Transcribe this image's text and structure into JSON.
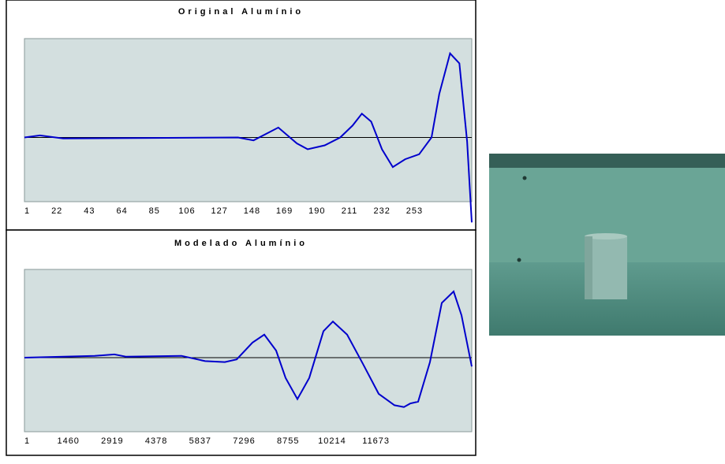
{
  "chart_data": [
    {
      "type": "line",
      "title": "Original Alumínio",
      "x": [
        1,
        11,
        26,
        139,
        149,
        165,
        177,
        184,
        195,
        205,
        213,
        219,
        225,
        232,
        239,
        247,
        256,
        264,
        269,
        276,
        282,
        287,
        290
      ],
      "series": [
        {
          "color": "#0000cc",
          "values": [
            0,
            0.02,
            -0.01,
            0,
            -0.03,
            0.1,
            -0.06,
            -0.12,
            -0.08,
            0,
            0.12,
            0.24,
            0.16,
            -0.12,
            -0.3,
            -0.22,
            -0.17,
            0,
            0.44,
            0.85,
            0.75,
            -0.04,
            -0.86
          ]
        }
      ],
      "xlim": [
        1,
        290
      ],
      "ylim": [
        -0.65,
        1
      ],
      "xticks": [
        1,
        22,
        43,
        64,
        85,
        106,
        127,
        148,
        169,
        190,
        211,
        232,
        253
      ]
    },
    {
      "type": "line",
      "title": "Modelado Alumínio",
      "x": [
        1,
        2332,
        2987,
        3380,
        5213,
        5999,
        6653,
        7046,
        7570,
        7963,
        8356,
        8670,
        9063,
        9456,
        9927,
        10241,
        10713,
        11237,
        11760,
        12284,
        12598,
        12808,
        13070,
        13463,
        13856,
        14249,
        14510,
        14851
      ],
      "series": [
        {
          "color": "#0000cc",
          "values": [
            0,
            0.02,
            0.036,
            0.01,
            0.02,
            -0.04,
            -0.05,
            -0.02,
            0.17,
            0.26,
            0.08,
            -0.23,
            -0.47,
            -0.23,
            0.3,
            0.41,
            0.26,
            -0.07,
            -0.41,
            -0.54,
            -0.56,
            -0.52,
            -0.5,
            -0.05,
            0.62,
            0.75,
            0.48,
            -0.1
          ]
        }
      ],
      "xlim": [
        1,
        14851
      ],
      "ylim": [
        -0.84,
        1
      ],
      "xticks": [
        1,
        1460,
        2919,
        4378,
        5837,
        7296,
        8755,
        10214,
        11673
      ]
    }
  ]
}
